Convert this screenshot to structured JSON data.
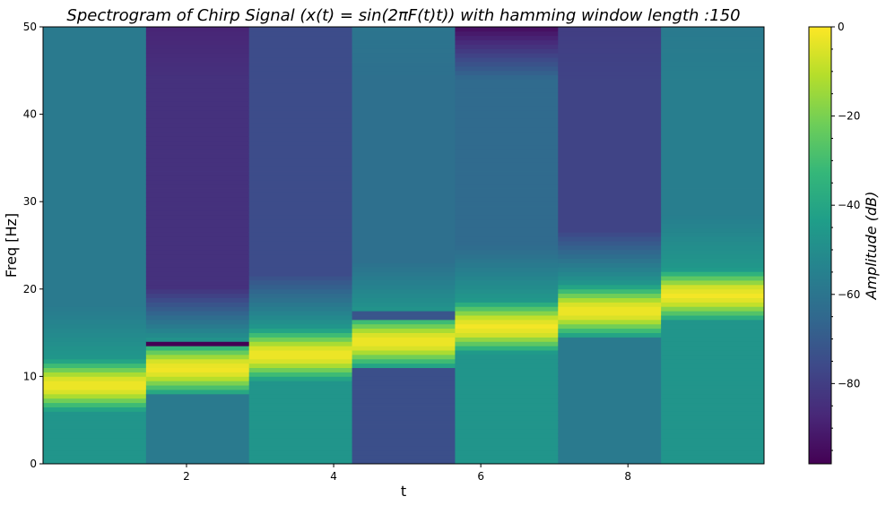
{
  "chart_data": {
    "type": "heatmap",
    "title": "Spectrogram of Chirp Signal (x(t) = sin(2πF(t)t)) with hamming window length :150",
    "xlabel": "t",
    "ylabel": "Freq [Hz]",
    "xlim": [
      0.05,
      9.85
    ],
    "ylim": [
      0,
      50
    ],
    "x_ticks": [
      2,
      4,
      6,
      8
    ],
    "y_ticks": [
      0,
      10,
      20,
      30,
      40,
      50
    ],
    "colormap": "viridis",
    "colorbar": {
      "label": "Amplitude (dB)",
      "range": [
        -98,
        0
      ],
      "ticks": [
        0,
        -20,
        -40,
        -60,
        -80
      ]
    },
    "time_bins": [
      0.05,
      1.45,
      2.85,
      4.25,
      5.65,
      7.05,
      8.45,
      9.85
    ],
    "columns": [
      {
        "peak_hz": 9.0,
        "bg_high_db": -58,
        "bg_low_db": -47,
        "top_db": -58,
        "notch_db": null
      },
      {
        "peak_hz": 10.9,
        "bg_high_db": -84,
        "bg_low_db": -58,
        "top_db": -88,
        "notch_db": -98
      },
      {
        "peak_hz": 12.5,
        "bg_high_db": -75,
        "bg_low_db": -47,
        "top_db": -75,
        "notch_db": null
      },
      {
        "peak_hz": 14.0,
        "bg_high_db": -62,
        "bg_low_db": -74,
        "top_db": -60,
        "notch_db": -72
      },
      {
        "peak_hz": 15.7,
        "bg_high_db": -64,
        "bg_low_db": -47,
        "top_db": -95,
        "notch_db": null
      },
      {
        "peak_hz": 17.5,
        "bg_high_db": -78,
        "bg_low_db": -58,
        "top_db": -80,
        "notch_db": null
      },
      {
        "peak_hz": 19.3,
        "bg_high_db": -56,
        "bg_low_db": -47,
        "top_db": -58,
        "notch_db": null
      }
    ]
  }
}
